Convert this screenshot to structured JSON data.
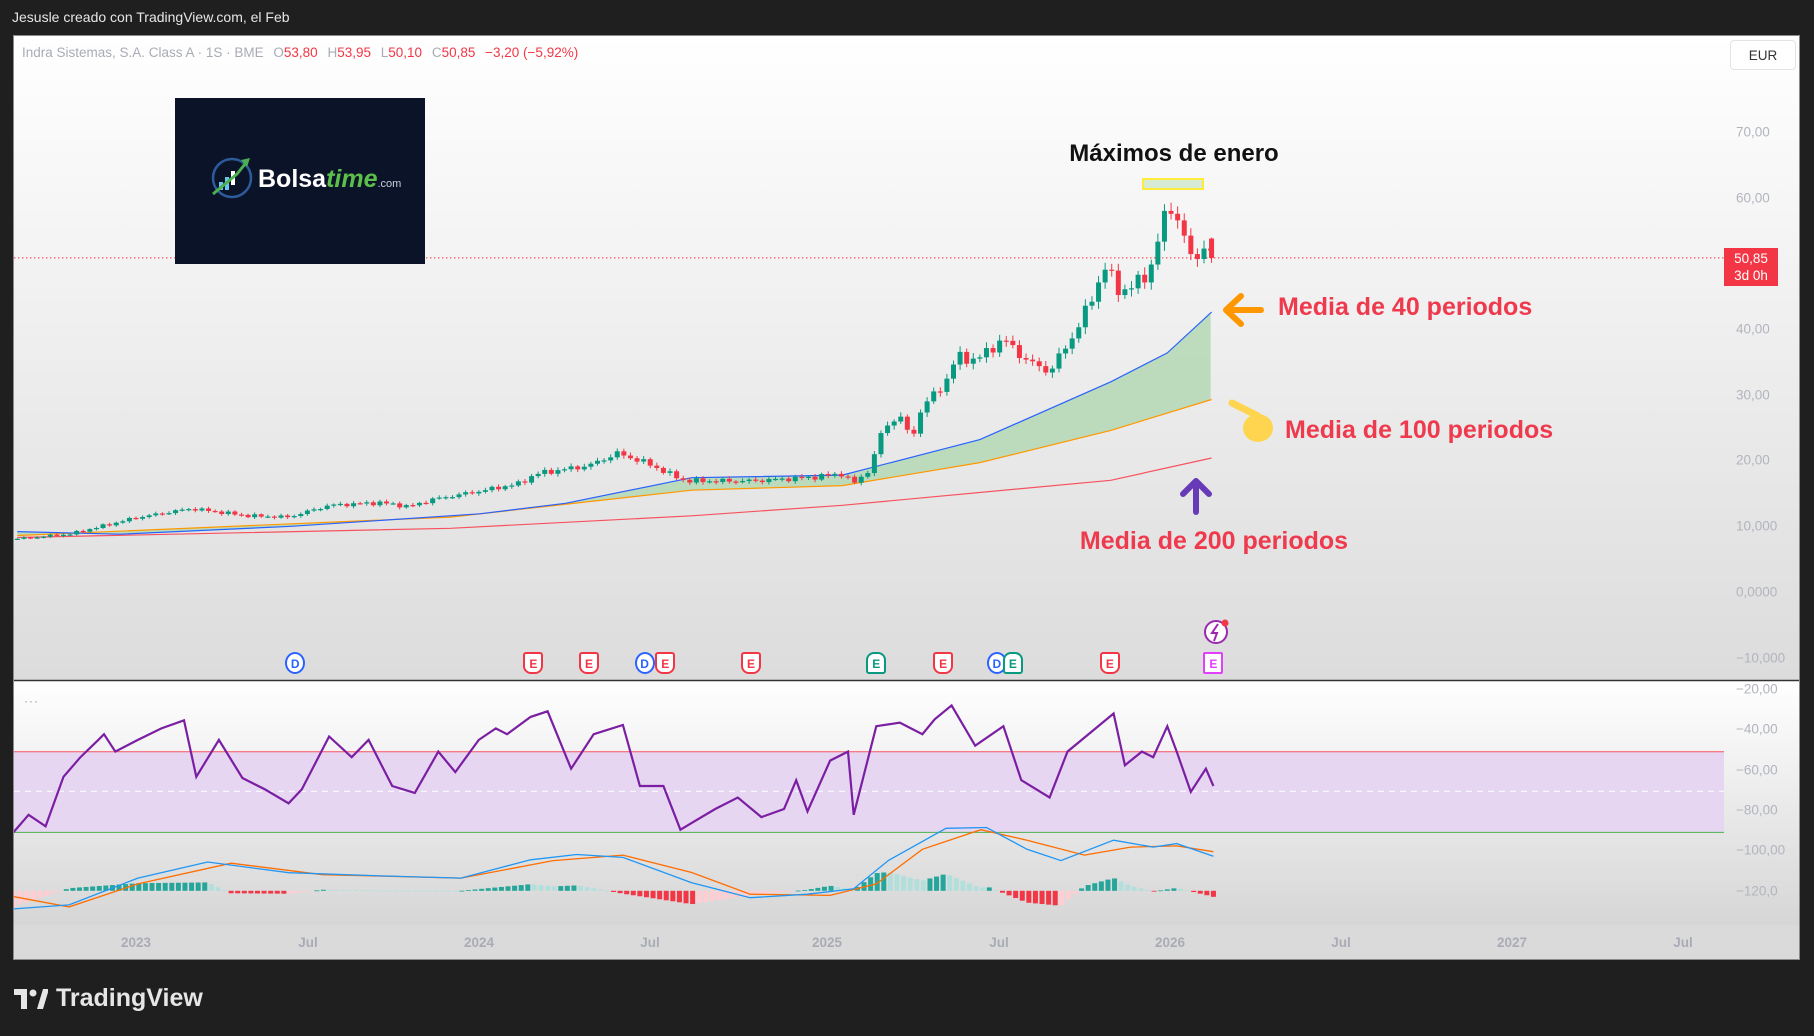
{
  "topbar": {
    "title": "Jesusle creado con TradingView.com, el Feb"
  },
  "legend": {
    "symbol": "Indra Sistemas, S.A. Class A · 1S · BME",
    "open_label": "O",
    "open": "53,80",
    "high_label": "H",
    "high": "53,95",
    "low_label": "L",
    "low": "50,10",
    "close_label": "C",
    "close": "50,85",
    "change": "−3,20 (−5,92%)"
  },
  "currency_button": "EUR",
  "last_price": {
    "value": "50,85",
    "countdown": "3d 0h"
  },
  "price_axis_labels": [
    "70,00",
    "60,00",
    "40,00",
    "30,00",
    "20,00",
    "10,000",
    "0,0000",
    "−10,000"
  ],
  "lower_axis_labels": [
    "−20,00",
    "−40,00",
    "−60,00",
    "−80,00",
    "−100,00",
    "−120,0"
  ],
  "time_axis_labels": [
    "2023",
    "Jul",
    "2024",
    "Jul",
    "2025",
    "Jul",
    "2026",
    "Jul",
    "2027",
    "Jul"
  ],
  "logo": {
    "brand_a": "Bolsa",
    "brand_b": "time",
    "suffix": ".com"
  },
  "annotations": {
    "maximos": "Máximos de enero",
    "ma40": "Media de 40 periodos",
    "ma100": "Media de 100 periodos",
    "ma200": "Media de 200 periodos"
  },
  "events": [
    {
      "type": "D",
      "date": "2023-06-19"
    },
    {
      "type": "E",
      "date": "2024-02-27"
    },
    {
      "type": "E",
      "date": "2024-04-26"
    },
    {
      "type": "D",
      "date": "2024-06-24"
    },
    {
      "type": "E",
      "date": "2024-07-16"
    },
    {
      "type": "E",
      "date": "2024-10-15"
    },
    {
      "type": "E+",
      "date": "2025-02-25"
    },
    {
      "type": "E",
      "date": "2025-05-07"
    },
    {
      "type": "D",
      "date": "2025-07-03"
    },
    {
      "type": "E+",
      "date": "2025-07-20"
    },
    {
      "type": "E",
      "date": "2025-10-31"
    },
    {
      "type": "E*",
      "date": "2026-02-18"
    }
  ],
  "footer": {
    "brand": "TradingView"
  },
  "colors": {
    "up": "#089981",
    "down": "#f23645",
    "ma40": "#2962ff",
    "ma100": "#ff9800",
    "ma200": "#f7525f",
    "ma_fill": "#b9d9b9",
    "rsi": "#7b1fa2",
    "rsi_band": "#e6d6f2",
    "macd": "#2196f3",
    "signal": "#ff6d00",
    "annotation_red": "#ef3a4e"
  },
  "chart_data": {
    "type": "candlestick",
    "interval": "1W",
    "last_candle": {
      "date": "2026-02-16",
      "open": 53.8,
      "high": 53.95,
      "low": 50.1,
      "close": 50.85
    },
    "close_path": [
      [
        "2022-08-28",
        8.1
      ],
      [
        "2022-10-22",
        8.8
      ],
      [
        "2023-01-01",
        11.3
      ],
      [
        "2023-02-28",
        12.7
      ],
      [
        "2023-04-30",
        11.6
      ],
      [
        "2023-06-12",
        11.4
      ],
      [
        "2023-07-25",
        13.2
      ],
      [
        "2023-09-18",
        13.6
      ],
      [
        "2023-10-18",
        13.0
      ],
      [
        "2023-11-12",
        14.1
      ],
      [
        "2023-12-30",
        15.3
      ],
      [
        "2024-02-12",
        16.5
      ],
      [
        "2024-03-01",
        18.0
      ],
      [
        "2024-04-01",
        18.7
      ],
      [
        "2024-04-25",
        19.2
      ],
      [
        "2024-05-26",
        21.1
      ],
      [
        "2024-06-25",
        19.7
      ],
      [
        "2024-07-26",
        17.6
      ],
      [
        "2024-08-07",
        16.9
      ],
      [
        "2024-10-14",
        16.9
      ],
      [
        "2024-12-14",
        17.4
      ],
      [
        "2025-01-20",
        18.0
      ],
      [
        "2025-02-01",
        16.5
      ],
      [
        "2025-02-19",
        18.8
      ],
      [
        "2025-03-04",
        25.0
      ],
      [
        "2025-03-22",
        26.8
      ],
      [
        "2025-04-03",
        23.2
      ],
      [
        "2025-04-15",
        28.2
      ],
      [
        "2025-05-10",
        32.0
      ],
      [
        "2025-05-22",
        36.0
      ],
      [
        "2025-06-10",
        35.2
      ],
      [
        "2025-07-10",
        38.5
      ],
      [
        "2025-08-04",
        35.2
      ],
      [
        "2025-08-28",
        33.5
      ],
      [
        "2025-09-22",
        39.0
      ],
      [
        "2025-10-10",
        44.0
      ],
      [
        "2025-10-26",
        49.6
      ],
      [
        "2025-11-10",
        45.6
      ],
      [
        "2025-12-10",
        48.0
      ],
      [
        "2025-12-31",
        58.5
      ],
      [
        "2026-01-10",
        57.5
      ],
      [
        "2026-01-28",
        49.6
      ],
      [
        "2026-02-10",
        53.7
      ],
      [
        "2026-02-16",
        50.85
      ]
    ],
    "moving_averages": [
      {
        "name": "MA 40",
        "path": [
          [
            "2022-08-28",
            9.2
          ],
          [
            "2022-12-15",
            8.8
          ],
          [
            "2023-06-15",
            10.0
          ],
          [
            "2024-01-01",
            11.9
          ],
          [
            "2024-04-01",
            13.5
          ],
          [
            "2024-08-13",
            17.4
          ],
          [
            "2025-01-20",
            17.8
          ],
          [
            "2025-06-15",
            23.2
          ],
          [
            "2025-11-01",
            32.0
          ],
          [
            "2025-12-31",
            36.4
          ],
          [
            "2026-02-16",
            42.6
          ]
        ]
      },
      {
        "name": "MA 100",
        "path": [
          [
            "2022-08-28",
            8.6
          ],
          [
            "2023-12-01",
            11.4
          ],
          [
            "2024-08-13",
            15.5
          ],
          [
            "2025-01-20",
            16.2
          ],
          [
            "2025-06-15",
            19.7
          ],
          [
            "2025-11-01",
            24.6
          ],
          [
            "2026-02-16",
            29.3
          ]
        ]
      },
      {
        "name": "MA 200",
        "path": [
          [
            "2022-08-28",
            8.3
          ],
          [
            "2023-12-01",
            9.7
          ],
          [
            "2024-08-13",
            11.6
          ],
          [
            "2025-01-20",
            13.2
          ],
          [
            "2025-11-01",
            17.0
          ],
          [
            "2026-02-16",
            20.4
          ]
        ]
      }
    ],
    "price_axis": {
      "min": -10,
      "max": 70,
      "step": 10
    },
    "lower_pane": {
      "axis": {
        "min": -120,
        "max": -20
      },
      "rsi_band": [
        -91,
        -51
      ],
      "rsi_mid": -70.6,
      "rsi": [
        [
          "2022-08-24",
          -90.9
        ],
        [
          "2022-09-09",
          -82.3
        ],
        [
          "2022-09-27",
          -88
        ],
        [
          "2022-10-16",
          -63.4
        ],
        [
          "2022-11-03",
          -53.7
        ],
        [
          "2022-11-22",
          -45.1
        ],
        [
          "2022-11-28",
          -42.3
        ],
        [
          "2022-12-10",
          -50.9
        ],
        [
          "2023-01-03",
          -45.1
        ],
        [
          "2023-01-28",
          -39.4
        ],
        [
          "2023-02-21",
          -35.4
        ],
        [
          "2023-03-06",
          -63.4
        ],
        [
          "2023-03-30",
          -45.1
        ],
        [
          "2023-04-24",
          -64
        ],
        [
          "2023-05-18",
          -69.7
        ],
        [
          "2023-06-12",
          -76.6
        ],
        [
          "2023-06-26",
          -69.7
        ],
        [
          "2023-07-25",
          -43.4
        ],
        [
          "2023-08-18",
          -53.7
        ],
        [
          "2023-09-05",
          -45.1
        ],
        [
          "2023-09-30",
          -68
        ],
        [
          "2023-10-24",
          -71.4
        ],
        [
          "2023-11-18",
          -50.9
        ],
        [
          "2023-12-06",
          -61.1
        ],
        [
          "2023-12-31",
          -45.1
        ],
        [
          "2024-01-18",
          -39.4
        ],
        [
          "2024-01-30",
          -42.3
        ],
        [
          "2024-02-24",
          -33.7
        ],
        [
          "2024-03-13",
          -30.9
        ],
        [
          "2024-04-07",
          -59.4
        ],
        [
          "2024-05-01",
          -42.3
        ],
        [
          "2024-06-01",
          -37.7
        ],
        [
          "2024-06-19",
          -68
        ],
        [
          "2024-07-14",
          -68
        ],
        [
          "2024-08-01",
          -89.7
        ],
        [
          "2024-08-13",
          -86.3
        ],
        [
          "2024-09-07",
          -79.4
        ],
        [
          "2024-10-01",
          -73.7
        ],
        [
          "2024-10-26",
          -83.4
        ],
        [
          "2024-11-19",
          -79.4
        ],
        [
          "2024-12-02",
          -65.1
        ],
        [
          "2024-12-14",
          -80.6
        ],
        [
          "2025-01-07",
          -55.4
        ],
        [
          "2025-01-26",
          -50.9
        ],
        [
          "2025-02-01",
          -82.3
        ],
        [
          "2025-02-25",
          -38.3
        ],
        [
          "2025-03-22",
          -36.6
        ],
        [
          "2025-04-15",
          -42.3
        ],
        [
          "2025-04-28",
          -34.9
        ],
        [
          "2025-05-16",
          -28
        ],
        [
          "2025-06-10",
          -48
        ],
        [
          "2025-07-10",
          -38.3
        ],
        [
          "2025-07-29",
          -65.1
        ],
        [
          "2025-08-28",
          -73.7
        ],
        [
          "2025-09-16",
          -50.9
        ],
        [
          "2025-11-04",
          -32
        ],
        [
          "2025-11-16",
          -57.7
        ],
        [
          "2025-12-04",
          -50.9
        ],
        [
          "2025-12-16",
          -53.7
        ],
        [
          "2025-12-31",
          -38.3
        ],
        [
          "2026-01-10",
          -50.9
        ],
        [
          "2026-01-25",
          -70.9
        ],
        [
          "2026-02-10",
          -59.4
        ],
        [
          "2026-02-18",
          -68
        ]
      ],
      "macd": [
        [
          "2022-08-24",
          -129
        ],
        [
          "2022-10-22",
          -127
        ],
        [
          "2023-01-03",
          -113.7
        ],
        [
          "2023-03-18",
          -105.7
        ],
        [
          "2023-06-12",
          -111
        ],
        [
          "2023-09-18",
          -112.6
        ],
        [
          "2023-12-12",
          -113.7
        ],
        [
          "2024-02-24",
          -104.6
        ],
        [
          "2024-04-13",
          -102
        ],
        [
          "2024-06-01",
          -103.4
        ],
        [
          "2024-08-13",
          -116
        ],
        [
          "2024-10-14",
          -123.4
        ],
        [
          "2024-12-14",
          -121.7
        ],
        [
          "2025-02-01",
          -119
        ],
        [
          "2025-03-10",
          -104.9
        ],
        [
          "2025-05-10",
          -89
        ],
        [
          "2025-06-22",
          -88.6
        ],
        [
          "2025-08-04",
          -99.4
        ],
        [
          "2025-09-09",
          -105
        ],
        [
          "2025-11-04",
          -94.9
        ],
        [
          "2025-12-16",
          -98.3
        ],
        [
          "2026-01-10",
          -96.6
        ],
        [
          "2026-02-18",
          -102.9
        ]
      ],
      "signal": [
        [
          "2022-08-24",
          -122.9
        ],
        [
          "2022-10-22",
          -128
        ],
        [
          "2023-01-03",
          -116.6
        ],
        [
          "2023-04-12",
          -106.3
        ],
        [
          "2023-07-18",
          -112
        ],
        [
          "2023-12-12",
          -113.7
        ],
        [
          "2024-03-19",
          -105
        ],
        [
          "2024-06-01",
          -102.3
        ],
        [
          "2024-08-13",
          -110.9
        ],
        [
          "2024-10-14",
          -121.7
        ],
        [
          "2025-01-07",
          -122.3
        ],
        [
          "2025-02-25",
          -116.6
        ],
        [
          "2025-04-15",
          -99.4
        ],
        [
          "2025-06-16",
          -89.7
        ],
        [
          "2025-08-04",
          -94.9
        ],
        [
          "2025-10-04",
          -102.3
        ],
        [
          "2025-11-22",
          -98.3
        ],
        [
          "2026-01-10",
          -97.7
        ],
        [
          "2026-02-18",
          -100.6
        ]
      ]
    }
  }
}
